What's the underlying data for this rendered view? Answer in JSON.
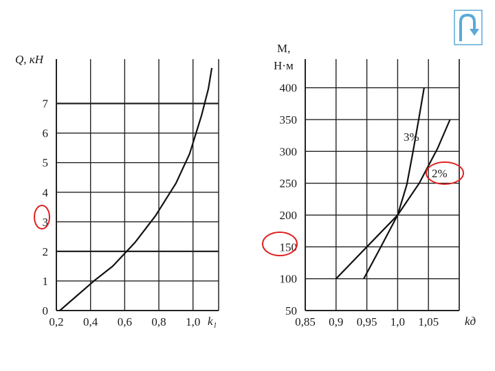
{
  "return_button": {
    "icon": "return-arrow-icon",
    "color": "#5aa9d6"
  },
  "chart_data": [
    {
      "type": "line",
      "ylabel": "Q, кН",
      "xlabel": "k₁",
      "x_ticks": [
        "0,2",
        "0,4",
        "0,6",
        "0,8",
        "1,0"
      ],
      "y_ticks": [
        "0",
        "1",
        "2",
        "3",
        "4",
        "5",
        "6",
        "7"
      ],
      "xlim": [
        0.2,
        1.15
      ],
      "ylim": [
        0,
        8.5
      ],
      "highlighted_tick": "3",
      "series": [
        {
          "points": [
            [
              0.22,
              0
            ],
            [
              0.32,
              0.5
            ],
            [
              0.42,
              1.0
            ],
            [
              0.53,
              1.5
            ],
            [
              0.66,
              2.3
            ],
            [
              0.78,
              3.2
            ],
            [
              0.9,
              4.3
            ],
            [
              0.98,
              5.3
            ],
            [
              1.05,
              6.6
            ],
            [
              1.09,
              7.5
            ],
            [
              1.11,
              8.2
            ]
          ]
        }
      ]
    },
    {
      "type": "line",
      "ylabel_line1": "М,",
      "ylabel_line2": "Н·м",
      "xlabel": "kд",
      "x_ticks": [
        "0,85",
        "0,9",
        "0,95",
        "1,0",
        "1,05"
      ],
      "y_ticks": [
        "50",
        "100",
        "150",
        "200",
        "250",
        "300",
        "350",
        "400"
      ],
      "xlim": [
        0.85,
        1.1
      ],
      "ylim": [
        50,
        445
      ],
      "highlighted_tick": "150",
      "series": [
        {
          "name": "3%",
          "highlighted": false,
          "points": [
            [
              0.945,
              100
            ],
            [
              0.97,
              145
            ],
            [
              1.0,
              200
            ],
            [
              1.015,
              248
            ],
            [
              1.025,
              300
            ],
            [
              1.035,
              355
            ],
            [
              1.043,
              400
            ]
          ]
        },
        {
          "name": "2%",
          "highlighted": true,
          "points": [
            [
              0.9,
              100
            ],
            [
              0.95,
              150
            ],
            [
              1.0,
              200
            ],
            [
              1.035,
              250
            ],
            [
              1.065,
              305
            ],
            [
              1.085,
              350
            ]
          ]
        }
      ]
    }
  ],
  "highlight_color": "#e02020"
}
